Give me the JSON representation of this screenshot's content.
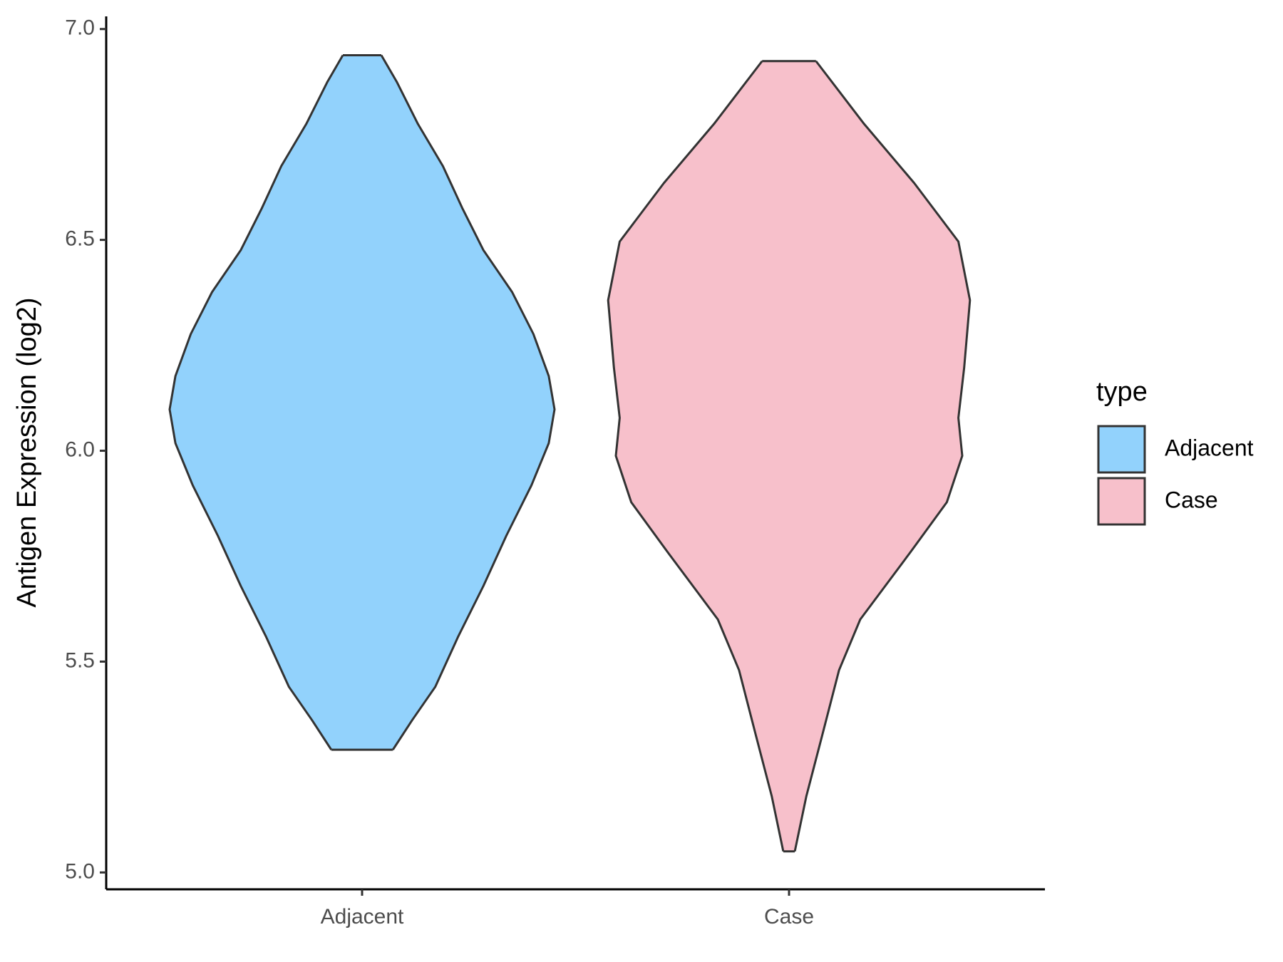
{
  "chart_data": {
    "type": "violin",
    "y_label": "Antigen Expression (log2)",
    "categories": [
      "Adjacent",
      "Case"
    ],
    "legend_title": "type",
    "legend_position": "right",
    "ylim": [
      4.96,
      7.03
    ],
    "yticks": [
      {
        "value": 5,
        "label": "5.0"
      },
      5.5,
      {
        "value": 6,
        "label": "6.0"
      },
      6.5,
      {
        "value": 7,
        "label": "7.0"
      }
    ],
    "series": [
      {
        "name": "Adjacent",
        "color": "#92d2fc",
        "y": [
          6.938,
          6.875,
          6.775,
          6.675,
          6.576,
          6.476,
          6.376,
          6.277,
          6.177,
          6.098,
          6.018,
          5.918,
          5.799,
          5.679,
          5.56,
          5.44,
          5.361,
          5.291
        ],
        "density": [
          0.1,
          0.18,
          0.29,
          0.42,
          0.52,
          0.63,
          0.78,
          0.89,
          0.97,
          1.0,
          0.97,
          0.88,
          0.75,
          0.63,
          0.5,
          0.38,
          0.26,
          0.16
        ]
      },
      {
        "name": "Case",
        "color": "#f7c0cb",
        "y": [
          6.924,
          6.775,
          6.635,
          6.496,
          6.357,
          6.197,
          6.078,
          5.988,
          5.878,
          5.759,
          5.6,
          5.48,
          5.321,
          5.181,
          5.05
        ],
        "density": [
          0.14,
          0.39,
          0.65,
          0.88,
          0.94,
          0.91,
          0.88,
          0.9,
          0.82,
          0.63,
          0.37,
          0.26,
          0.17,
          0.09,
          0.03
        ]
      }
    ]
  }
}
